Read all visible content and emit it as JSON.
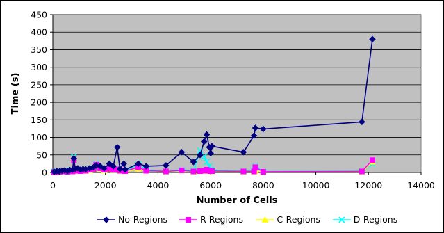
{
  "chart_data": {
    "type": "line",
    "title": "",
    "xlabel": "Number of Cells",
    "ylabel": "Time (s)",
    "xlim": [
      0,
      14000
    ],
    "ylim": [
      0,
      450
    ],
    "x_ticks": [
      "0",
      "2000",
      "4000",
      "6000",
      "8000",
      "10000",
      "12000",
      "14000"
    ],
    "y_ticks": [
      "0",
      "50",
      "100",
      "150",
      "200",
      "250",
      "300",
      "350",
      "400",
      "450"
    ],
    "grid": "horizontal",
    "plot_background": "#c0c0c0",
    "legend_position": "bottom",
    "series": [
      {
        "name": "No-Regions",
        "color": "#000080",
        "marker": "diamond",
        "x": [
          50,
          150,
          250,
          350,
          450,
          550,
          650,
          750,
          800,
          850,
          950,
          1050,
          1150,
          1250,
          1400,
          1550,
          1650,
          1800,
          1950,
          2150,
          2300,
          2450,
          2550,
          2700,
          2750,
          3250,
          3550,
          4300,
          4900,
          5350,
          5600,
          5750,
          5850,
          5950,
          6000,
          6050,
          7250,
          7650,
          7700,
          8000,
          11750,
          12150
        ],
        "y": [
          2,
          4,
          3,
          5,
          6,
          4,
          7,
          8,
          40,
          10,
          12,
          8,
          10,
          9,
          12,
          15,
          20,
          18,
          12,
          25,
          18,
          72,
          10,
          25,
          8,
          25,
          18,
          20,
          58,
          30,
          50,
          88,
          108,
          72,
          55,
          75,
          58,
          105,
          127,
          124,
          144,
          380
        ]
      },
      {
        "name": "R-Regions",
        "color": "#ff00ff",
        "marker": "square",
        "x": [
          50,
          150,
          250,
          350,
          450,
          550,
          650,
          750,
          800,
          850,
          950,
          1050,
          1150,
          1250,
          1400,
          1550,
          1650,
          1800,
          1950,
          2150,
          2300,
          2450,
          2550,
          2700,
          2750,
          3250,
          3550,
          4300,
          4900,
          5350,
          5600,
          5750,
          5850,
          5950,
          6000,
          6050,
          7250,
          7650,
          7700,
          8000,
          11750,
          12150
        ],
        "y": [
          1,
          2,
          2,
          3,
          3,
          2,
          4,
          3,
          35,
          5,
          6,
          4,
          5,
          5,
          8,
          10,
          22,
          12,
          8,
          10,
          8,
          9,
          5,
          6,
          4,
          15,
          5,
          3,
          6,
          3,
          4,
          5,
          8,
          5,
          4,
          4,
          3,
          3,
          15,
          2,
          3,
          35
        ]
      },
      {
        "name": "C-Regions",
        "color": "#ffff00",
        "marker": "triangle",
        "x": [
          50,
          150,
          250,
          350,
          450,
          550,
          650,
          750,
          800,
          850,
          950,
          1050,
          1150,
          1250,
          1400,
          1550,
          1650,
          1800,
          1950,
          2150,
          2300,
          2450,
          2550,
          2700,
          2750,
          3250,
          3550,
          4300,
          4900,
          5350,
          5600,
          5750,
          5850,
          5950,
          6000,
          6050,
          7250,
          7650,
          7700,
          8000,
          11750,
          12150
        ],
        "y": [
          1,
          2,
          2,
          2,
          3,
          2,
          3,
          3,
          38,
          4,
          5,
          4,
          5,
          4,
          6,
          9,
          20,
          10,
          6,
          8,
          7,
          8,
          4,
          5,
          3,
          10,
          5,
          2,
          5,
          2,
          3,
          4,
          5,
          3,
          3,
          3,
          2,
          2,
          4,
          2,
          2,
          30
        ]
      },
      {
        "name": "D-Regions",
        "color": "#00ffff",
        "marker": "x",
        "x": [
          50,
          150,
          250,
          350,
          450,
          550,
          650,
          750,
          800,
          850,
          950,
          1050,
          1150,
          1250,
          1400,
          1550,
          1650,
          1800,
          1950,
          2150,
          2300,
          2450,
          2550,
          2700,
          2750,
          3250,
          3550,
          4300,
          4900,
          5350,
          5600,
          5750,
          5850,
          5950,
          6000,
          6050,
          7250,
          7650,
          7700,
          8000,
          11750,
          12150
        ],
        "y": [
          2,
          3,
          3,
          4,
          4,
          3,
          5,
          5,
          45,
          6,
          7,
          5,
          6,
          6,
          9,
          12,
          25,
          14,
          9,
          12,
          10,
          12,
          6,
          7,
          5,
          22,
          8,
          3,
          8,
          5,
          62,
          45,
          30,
          18,
          8,
          6,
          4,
          5,
          18,
          3,
          4,
          25
        ]
      }
    ]
  }
}
